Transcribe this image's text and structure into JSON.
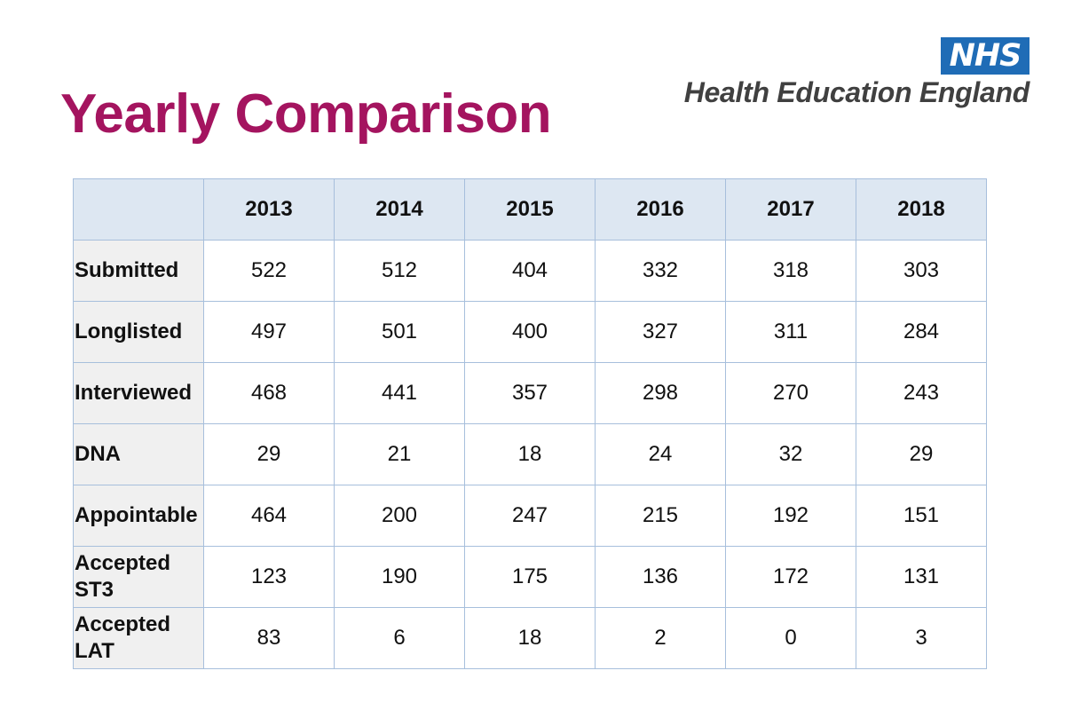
{
  "title": "Yearly Comparison",
  "logo": {
    "nhs": "NHS",
    "org": "Health Education England"
  },
  "table": {
    "headers": [
      "",
      "2013",
      "2014",
      "2015",
      "2016",
      "2017",
      "2018"
    ],
    "rows": [
      {
        "label": "Submitted",
        "values": [
          "522",
          "512",
          "404",
          "332",
          "318",
          "303"
        ]
      },
      {
        "label": "Longlisted",
        "values": [
          "497",
          "501",
          "400",
          "327",
          "311",
          "284"
        ]
      },
      {
        "label": "Interviewed",
        "values": [
          "468",
          "441",
          "357",
          "298",
          "270",
          "243"
        ]
      },
      {
        "label": "DNA",
        "values": [
          "29",
          "21",
          "18",
          "24",
          "32",
          "29"
        ]
      },
      {
        "label": "Appointable",
        "values": [
          "464",
          "200",
          "247",
          "215",
          "192",
          "151"
        ]
      },
      {
        "label": "Accepted ST3",
        "values": [
          "123",
          "190",
          "175",
          "136",
          "172",
          "131"
        ]
      },
      {
        "label": "Accepted LAT",
        "values": [
          "83",
          "6",
          "18",
          "2",
          "0",
          "3"
        ]
      }
    ]
  },
  "colors": {
    "title": "#a4145f",
    "nhs_blue": "#1f6cb6",
    "header_bg": "#dde7f2",
    "label_bg": "#f0f0f0",
    "border": "#a7bfdc"
  }
}
